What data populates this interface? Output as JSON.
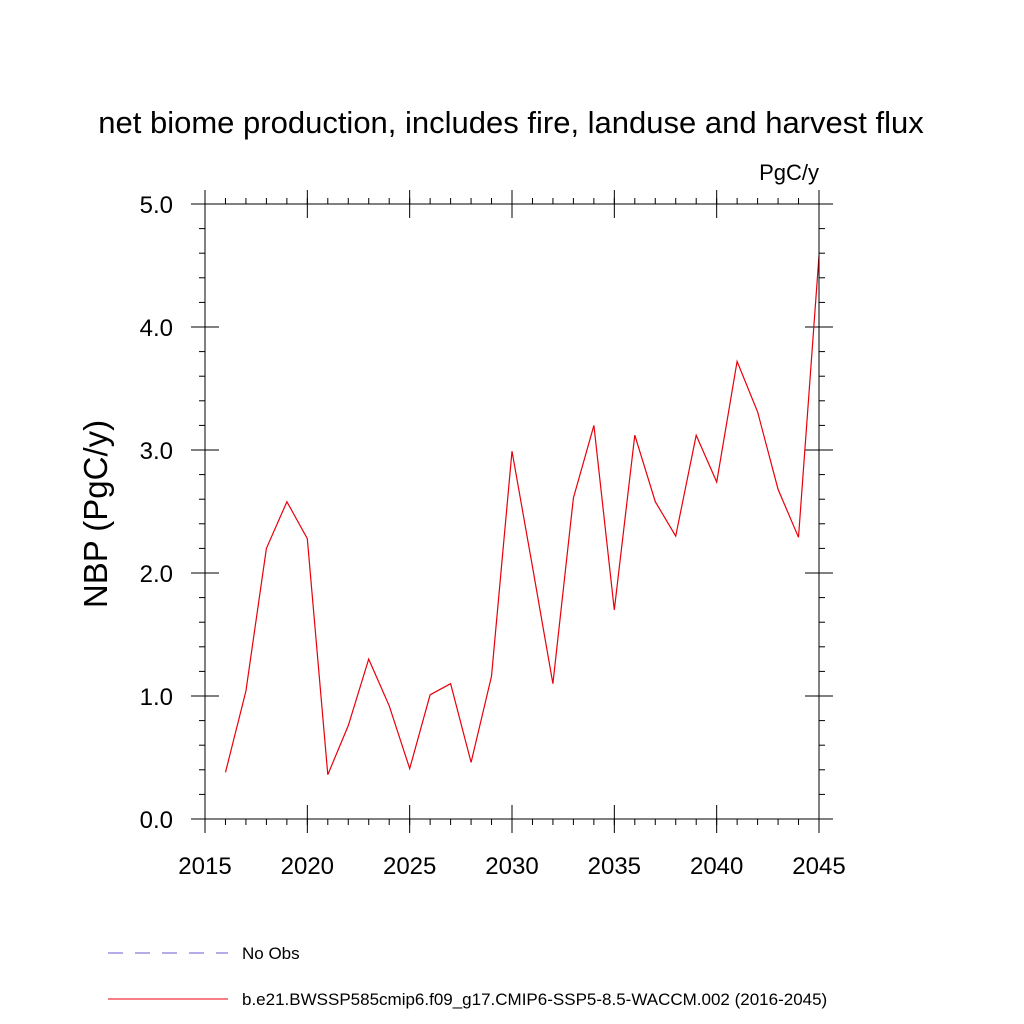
{
  "chart_data": {
    "type": "line",
    "title": "net biome production, includes fire, landuse and harvest flux",
    "units": "PgC/y",
    "xlabel": "",
    "ylabel": "NBP  (PgC/y)",
    "xlim": [
      2015,
      2045
    ],
    "ylim": [
      0.0,
      5.0
    ],
    "x_ticks": [
      2015,
      2020,
      2025,
      2030,
      2035,
      2040,
      2045
    ],
    "x_tick_labels": [
      "2015",
      "2020",
      "2025",
      "2030",
      "2035",
      "2040",
      "2045"
    ],
    "y_ticks": [
      0.0,
      1.0,
      2.0,
      3.0,
      4.0,
      5.0
    ],
    "y_tick_labels": [
      "0.0",
      "1.0",
      "2.0",
      "3.0",
      "4.0",
      "5.0"
    ],
    "grid": false,
    "legend_position": "bottom",
    "series": [
      {
        "name": "b.e21.BWSSP585cmip6.f09_g17.CMIP6-SSP5-8.5-WACCM.002 (2016-2045)",
        "color": "#e8000b",
        "style": "solid",
        "x": [
          2016,
          2017,
          2018,
          2019,
          2020,
          2021,
          2022,
          2023,
          2024,
          2025,
          2026,
          2027,
          2028,
          2029,
          2030,
          2031,
          2032,
          2033,
          2034,
          2035,
          2036,
          2037,
          2038,
          2039,
          2040,
          2041,
          2042,
          2043,
          2044,
          2045
        ],
        "y": [
          0.38,
          1.04,
          2.2,
          2.58,
          2.28,
          0.36,
          0.76,
          1.3,
          0.92,
          0.41,
          1.01,
          1.1,
          0.46,
          1.16,
          2.99,
          2.05,
          1.1,
          2.61,
          3.2,
          1.7,
          3.12,
          2.58,
          2.3,
          3.12,
          2.74,
          3.72,
          3.31,
          2.68,
          2.29,
          4.58
        ]
      }
    ],
    "legend": [
      {
        "label": "No Obs",
        "color": "#6a5acd",
        "style": "dashed"
      },
      {
        "label": "b.e21.BWSSP585cmip6.f09_g17.CMIP6-SSP5-8.5-WACCM.002 (2016-2045)",
        "color": "#e8000b",
        "style": "solid"
      }
    ]
  }
}
